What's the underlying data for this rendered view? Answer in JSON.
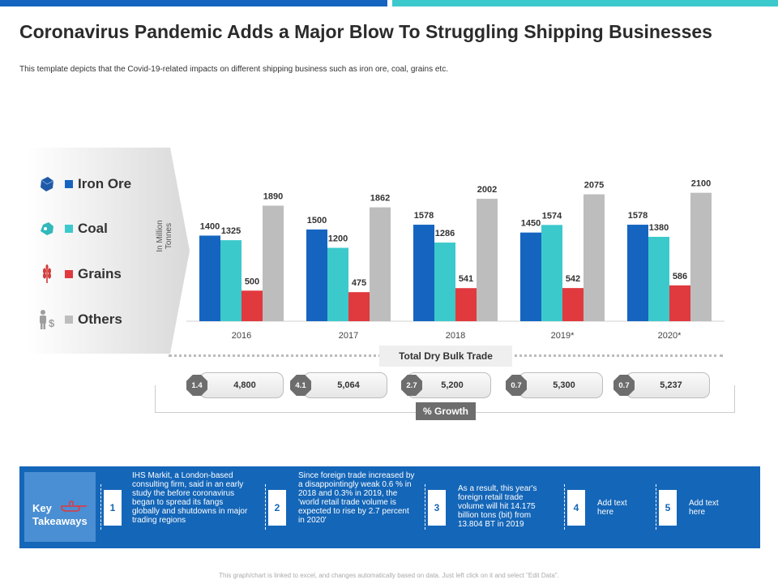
{
  "title": "Coronavirus Pandemic Adds a Major Blow To Struggling Shipping Businesses",
  "subtitle": "This template depicts that the Covid-19-related impacts on different shipping business such as iron ore, coal, grains etc.",
  "colors": {
    "iron_ore": "#1565c0",
    "coal": "#3cc9cc",
    "grains": "#e0393e",
    "others": "#bdbdbd",
    "accent_dark": "#1466b8"
  },
  "legend": [
    {
      "label": "Iron Ore",
      "icon": "iron-ore-icon",
      "color": "#1565c0"
    },
    {
      "label": "Coal",
      "icon": "coal-icon",
      "color": "#3cc9cc"
    },
    {
      "label": "Grains",
      "icon": "wheat-icon",
      "color": "#e0393e"
    },
    {
      "label": "Others",
      "icon": "person-dollar-icon",
      "color": "#bdbdbd"
    }
  ],
  "chart_data": {
    "type": "bar",
    "categories": [
      "2016",
      "2017",
      "2018",
      "2019*",
      "2020*"
    ],
    "series": [
      {
        "name": "Iron Ore",
        "values": [
          1400,
          1500,
          1578,
          1450,
          1578
        ]
      },
      {
        "name": "Coal",
        "values": [
          1325,
          1200,
          1286,
          1574,
          1380
        ]
      },
      {
        "name": "Grains",
        "values": [
          500,
          475,
          541,
          542,
          586
        ]
      },
      {
        "name": "Others",
        "values": [
          1890,
          1862,
          2002,
          2075,
          2100
        ]
      }
    ],
    "ylabel": "In Million Tonnes",
    "xlabel": "",
    "ylim": [
      0,
      2600
    ]
  },
  "dry_bulk": {
    "label": "Total Dry Bulk Trade",
    "totals": [
      "4,800",
      "5,064",
      "5,200",
      "5,300",
      "5,237"
    ],
    "growth": [
      "1.4",
      "4.1",
      "2.7",
      "0.7",
      "0.7"
    ],
    "growth_label": "% Growth"
  },
  "takeaways": {
    "heading_line1": "Key",
    "heading_line2": "Takeaways",
    "items": [
      {
        "num": "1",
        "text": "IHS Markit, a London-based consulting firm, said in an early study the before coronavirus began to spread its fangs globally and shutdowns in major trading regions"
      },
      {
        "num": "2",
        "text": "Since foreign trade increased by a disappointingly weak 0.6 % in 2018 and 0.3% in 2019, the 'world retail trade volume is expected to rise by 2.7 percent in 2020'"
      },
      {
        "num": "3",
        "text": "As a result, this year's foreign retail trade volume will hit 14.175 billion tons (bit) from 13.804 BT in 2019"
      },
      {
        "num": "4",
        "text": "Add text here"
      },
      {
        "num": "5",
        "text": "Add text here"
      }
    ]
  },
  "footer": "This graph/chart is linked to excel, and changes automatically based on data. Just left click on it and select \"Edit Data\"."
}
